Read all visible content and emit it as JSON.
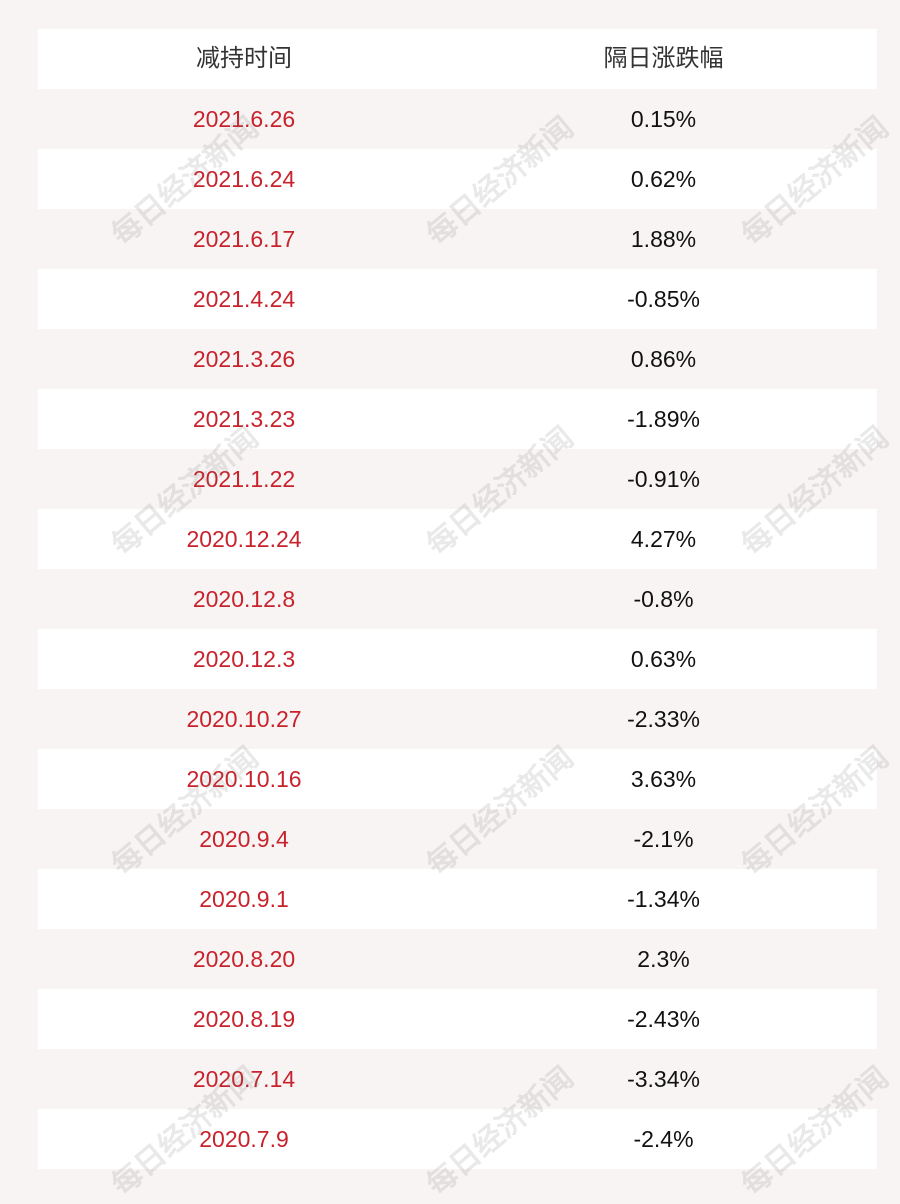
{
  "header": {
    "col1": "减持时间",
    "col2": "隔日涨跌幅"
  },
  "rows": [
    {
      "date": "2021.6.26",
      "change": "0.15%"
    },
    {
      "date": "2021.6.24",
      "change": "0.62%"
    },
    {
      "date": "2021.6.17",
      "change": "1.88%"
    },
    {
      "date": "2021.4.24",
      "change": "-0.85%"
    },
    {
      "date": "2021.3.26",
      "change": "0.86%"
    },
    {
      "date": "2021.3.23",
      "change": "-1.89%"
    },
    {
      "date": "2021.1.22",
      "change": "-0.91%"
    },
    {
      "date": "2020.12.24",
      "change": "4.27%"
    },
    {
      "date": "2020.12.8",
      "change": "-0.8%"
    },
    {
      "date": "2020.12.3",
      "change": "0.63%"
    },
    {
      "date": "2020.10.27",
      "change": "-2.33%"
    },
    {
      "date": "2020.10.16",
      "change": "3.63%"
    },
    {
      "date": "2020.9.4",
      "change": "-2.1%"
    },
    {
      "date": "2020.9.1",
      "change": "-1.34%"
    },
    {
      "date": "2020.8.20",
      "change": "2.3%"
    },
    {
      "date": "2020.8.19",
      "change": "-2.43%"
    },
    {
      "date": "2020.7.14",
      "change": "-3.34%"
    },
    {
      "date": "2020.7.9",
      "change": "-2.4%"
    }
  ],
  "watermark": "每日经济新闻",
  "colors": {
    "date": "#c8232c",
    "value": "#111111",
    "header": "#333333",
    "shade": "#f8f4f4"
  }
}
